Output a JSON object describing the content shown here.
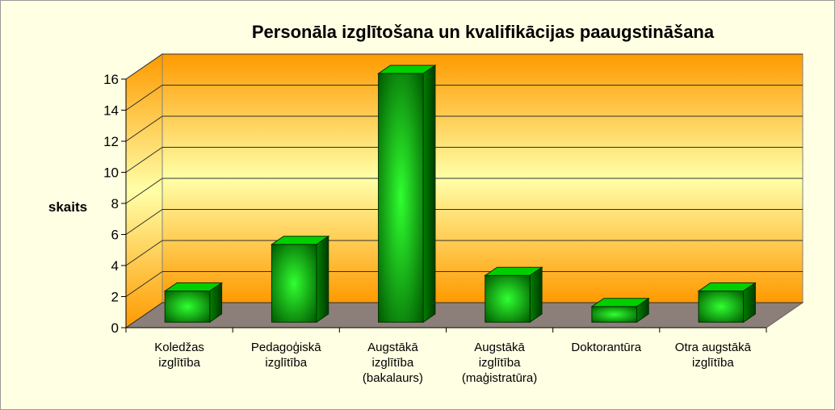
{
  "chart_data": {
    "type": "bar3d",
    "title": "Personāla izglītošana un kvalifikācijas paaugstināšana",
    "y_label": "skaits",
    "categories": [
      "Koledžas izglītība",
      "Pedagoģiskā izglītība",
      "Augstākā izglītība (bakalaurs)",
      "Augstākā izglītība (maģistratūra)",
      "Doktorantūra",
      "Otra augstākā izglītība"
    ],
    "values": [
      2,
      5,
      16,
      3,
      1,
      2
    ],
    "color": "#00d000",
    "ylim": [
      0,
      16
    ],
    "yticks": [
      0,
      2,
      4,
      6,
      8,
      10,
      12,
      14,
      16
    ],
    "grid": true
  }
}
